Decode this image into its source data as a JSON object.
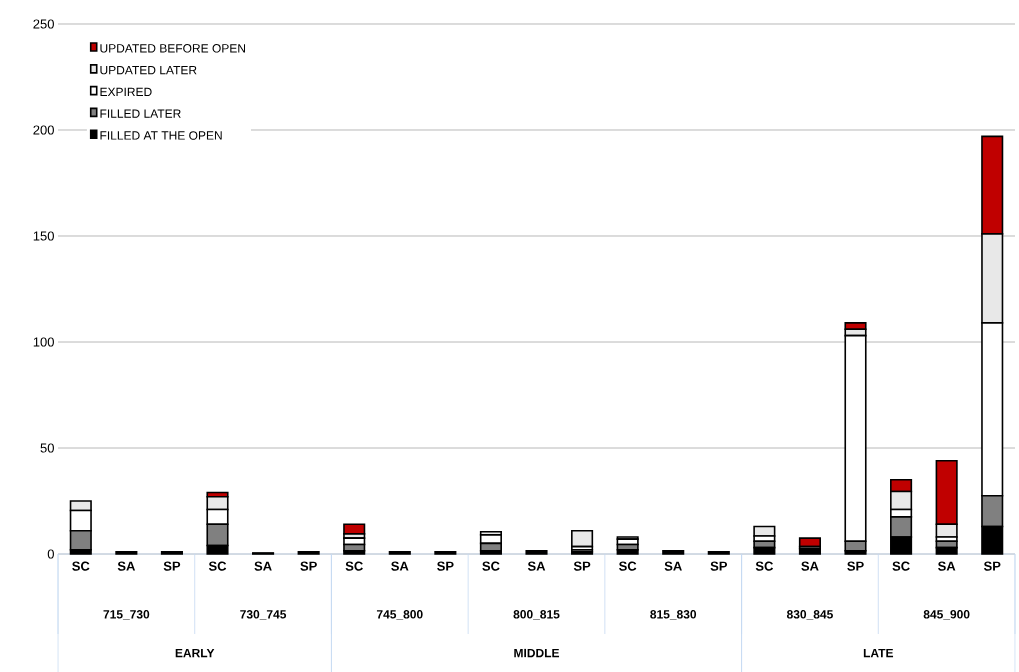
{
  "chart_data": {
    "type": "bar",
    "stacked": true,
    "categories": [
      "SC",
      "SA",
      "SP",
      "SC",
      "SA",
      "SP",
      "SC",
      "SA",
      "SP",
      "SC",
      "SA",
      "SP",
      "SC",
      "SA",
      "SP",
      "SC",
      "SA",
      "SP",
      "SC",
      "SA",
      "SP"
    ],
    "series": [
      {
        "name": "FILLED AT THE OPEN",
        "color": "#000000",
        "values": [
          2,
          1,
          1,
          4,
          0.5,
          1,
          1.5,
          1,
          1,
          1.5,
          1.5,
          1,
          2,
          1.5,
          1,
          3,
          2.5,
          1.5,
          8,
          3,
          13
        ]
      },
      {
        "name": "FILLED LATER",
        "color": "#808080",
        "values": [
          9,
          0,
          0,
          10,
          0,
          0,
          3,
          0,
          0,
          3.5,
          0,
          1,
          2.5,
          0,
          0,
          3,
          1,
          4.5,
          9.5,
          3,
          14.5
        ]
      },
      {
        "name": "EXPIRED",
        "color": "#ffffff",
        "values": [
          9.5,
          0,
          0,
          7,
          0,
          0,
          3,
          0,
          0,
          4,
          0,
          1.5,
          2.5,
          0,
          0,
          2.5,
          null,
          97,
          3.5,
          2,
          81.5
        ]
      },
      {
        "name": "UPDATED LATER",
        "color": "#e8e8e8",
        "values": [
          4.5,
          0,
          0,
          6,
          0,
          0,
          2,
          0,
          0,
          1.5,
          0,
          7.5,
          1,
          0,
          0,
          4.5,
          null,
          3,
          8.5,
          6,
          42
        ]
      },
      {
        "name": "UPDATED BEFORE OPEN",
        "color": "#c00000",
        "values": [
          0,
          0,
          0,
          2,
          0,
          0,
          4.5,
          0,
          0,
          0,
          0,
          0,
          0,
          0,
          0,
          0,
          4,
          3,
          5.5,
          30,
          46
        ]
      }
    ],
    "ylim": [
      0,
      250
    ],
    "yticks": [
      0,
      50,
      100,
      150,
      200,
      250
    ],
    "grid": "y",
    "legend": "top left",
    "annotations": [
      "715_730",
      "730_745",
      "745_800",
      "800_815",
      "815_830",
      "830_845",
      "845_900",
      "EARLY",
      "MIDDLE",
      "LATE"
    ]
  }
}
